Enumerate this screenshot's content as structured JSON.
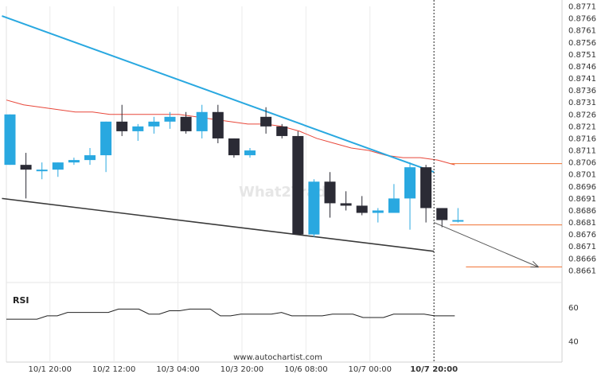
{
  "chart_data": {
    "type": "candlestick",
    "ylim": [
      0.8656,
      0.8771
    ],
    "y_ticks": [
      "0.8771",
      "0.8766",
      "0.8761",
      "0.8756",
      "0.8751",
      "0.8746",
      "0.8741",
      "0.8736",
      "0.8731",
      "0.8726",
      "0.8721",
      "0.8716",
      "0.8711",
      "0.8706",
      "0.8701",
      "0.8696",
      "0.8691",
      "0.8686",
      "0.8681",
      "0.8676",
      "0.8671",
      "0.8666",
      "0.8661"
    ],
    "x_ticks": [
      {
        "label": "10/1 20:00",
        "index": 2.5,
        "bold": false
      },
      {
        "label": "10/2 12:00",
        "index": 6.5,
        "bold": false
      },
      {
        "label": "10/3 04:00",
        "index": 10.5,
        "bold": false
      },
      {
        "label": "10/3 20:00",
        "index": 14.5,
        "bold": false
      },
      {
        "label": "10/6 08:00",
        "index": 18.5,
        "bold": false
      },
      {
        "label": "10/7 00:00",
        "index": 22.5,
        "bold": false
      },
      {
        "label": "10/7 20:00",
        "index": 26.5,
        "bold": true
      }
    ],
    "candles": [
      {
        "o": 0.8705,
        "h": 0.8726,
        "l": 0.8705,
        "c": 0.8726
      },
      {
        "o": 0.8705,
        "h": 0.871,
        "l": 0.8691,
        "c": 0.8703
      },
      {
        "o": 0.8703,
        "h": 0.8706,
        "l": 0.8699,
        "c": 0.8703
      },
      {
        "o": 0.8703,
        "h": 0.8706,
        "l": 0.87,
        "c": 0.8706
      },
      {
        "o": 0.8706,
        "h": 0.8708,
        "l": 0.8705,
        "c": 0.8707
      },
      {
        "o": 0.8707,
        "h": 0.8712,
        "l": 0.8705,
        "c": 0.8709
      },
      {
        "o": 0.8709,
        "h": 0.8723,
        "l": 0.8702,
        "c": 0.8723
      },
      {
        "o": 0.8723,
        "h": 0.873,
        "l": 0.8717,
        "c": 0.8719
      },
      {
        "o": 0.8719,
        "h": 0.8722,
        "l": 0.8715,
        "c": 0.8721
      },
      {
        "o": 0.8721,
        "h": 0.8725,
        "l": 0.8718,
        "c": 0.8723
      },
      {
        "o": 0.8723,
        "h": 0.8727,
        "l": 0.872,
        "c": 0.8725
      },
      {
        "o": 0.8725,
        "h": 0.8727,
        "l": 0.8718,
        "c": 0.8719
      },
      {
        "o": 0.8719,
        "h": 0.873,
        "l": 0.8716,
        "c": 0.8727
      },
      {
        "o": 0.8727,
        "h": 0.873,
        "l": 0.8714,
        "c": 0.8716
      },
      {
        "o": 0.8716,
        "h": 0.8716,
        "l": 0.8708,
        "c": 0.8709
      },
      {
        "o": 0.8709,
        "h": 0.8712,
        "l": 0.8708,
        "c": 0.8711
      },
      {
        "o": 0.8725,
        "h": 0.8729,
        "l": 0.8718,
        "c": 0.8721
      },
      {
        "o": 0.8721,
        "h": 0.8722,
        "l": 0.8716,
        "c": 0.8717
      },
      {
        "o": 0.8717,
        "h": 0.8719,
        "l": 0.8676,
        "c": 0.8676
      },
      {
        "o": 0.8676,
        "h": 0.8699,
        "l": 0.8675,
        "c": 0.8698
      },
      {
        "o": 0.8698,
        "h": 0.8702,
        "l": 0.8683,
        "c": 0.8689
      },
      {
        "o": 0.8689,
        "h": 0.8694,
        "l": 0.8686,
        "c": 0.8688
      },
      {
        "o": 0.8688,
        "h": 0.8692,
        "l": 0.8684,
        "c": 0.8685
      },
      {
        "o": 0.8685,
        "h": 0.8687,
        "l": 0.8681,
        "c": 0.8686
      },
      {
        "o": 0.8685,
        "h": 0.8697,
        "l": 0.8685,
        "c": 0.8691
      },
      {
        "o": 0.8691,
        "h": 0.8706,
        "l": 0.8678,
        "c": 0.8704
      },
      {
        "o": 0.8704,
        "h": 0.8705,
        "l": 0.8681,
        "c": 0.8687
      },
      {
        "o": 0.8687,
        "h": 0.8687,
        "l": 0.8679,
        "c": 0.8682
      },
      {
        "o": 0.8682,
        "h": 0.8687,
        "l": 0.8681,
        "c": 0.8682
      }
    ],
    "moving_average": [
      0.8732,
      0.873,
      0.8729,
      0.8728,
      0.8727,
      0.8727,
      0.8726,
      0.8726,
      0.8726,
      0.8726,
      0.8726,
      0.8725,
      0.8724,
      0.8723,
      0.8722,
      0.8722,
      0.8721,
      0.8719,
      0.8716,
      0.8714,
      0.8712,
      0.8711,
      0.8709,
      0.8708,
      0.8708,
      0.8707,
      0.8705
    ],
    "trendlines": [
      {
        "name": "resistance",
        "from": [
          -0.5,
          0.8767
        ],
        "to": [
          26.5,
          0.8702
        ]
      },
      {
        "name": "support",
        "from": [
          -0.5,
          0.8691
        ],
        "to": [
          26.5,
          0.8669
        ]
      }
    ],
    "levels": [
      {
        "value": 0.87055,
        "from": 27.5,
        "to": 34
      },
      {
        "value": 0.868,
        "from": 27.5,
        "to": 34
      },
      {
        "value": 0.86625,
        "from": 28.5,
        "to": 34
      }
    ],
    "forecast_arrow": {
      "from": [
        26.5,
        0.8681
      ],
      "to": [
        33.0,
        0.86625
      ]
    },
    "annotation": "10/7 20:00",
    "rsi": {
      "label": "RSI",
      "ticks": [
        "60",
        "40"
      ],
      "ylim": [
        30,
        70
      ],
      "values": [
        53,
        53,
        53,
        53,
        55,
        55,
        57,
        57,
        57,
        57,
        57,
        59,
        59,
        59,
        56,
        56,
        58,
        58,
        59,
        59,
        59,
        55,
        55,
        56,
        56,
        56,
        56,
        57,
        55,
        55,
        55,
        55,
        56,
        56,
        56,
        54,
        54,
        54,
        56,
        56,
        56,
        56,
        55,
        55,
        55
      ]
    },
    "watermark": "www.autochartist.com"
  }
}
